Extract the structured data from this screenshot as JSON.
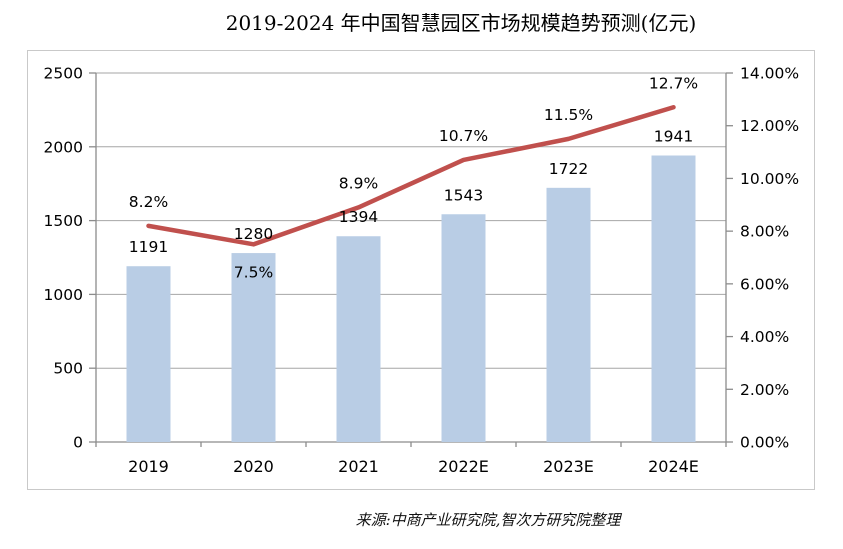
{
  "chart_data": {
    "type": "bar+line",
    "title": "2019-2024 年中国智慧园区市场规模趋势预测(亿元)",
    "source_note": "来源:中商产业研究院,智次方研究院整理",
    "categories": [
      "2019",
      "2020",
      "2021",
      "2022E",
      "2023E",
      "2024E"
    ],
    "series": [
      {
        "id": "bar",
        "type": "bar",
        "axis": "left",
        "color": "#B9CDE5",
        "values": [
          1191,
          1280,
          1394,
          1543,
          1722,
          1941
        ],
        "labels": [
          "1191",
          "1280",
          "1394",
          "1543",
          "1722",
          "1941"
        ]
      },
      {
        "id": "line",
        "type": "line",
        "axis": "right",
        "color": "#C0504D",
        "values": [
          8.2,
          7.5,
          8.9,
          10.7,
          11.5,
          12.7
        ],
        "labels": [
          "8.2%",
          "7.5%",
          "8.9%",
          "10.7%",
          "11.5%",
          "12.7%"
        ],
        "label_positions": [
          "above",
          "below",
          "above",
          "above",
          "above",
          "above"
        ]
      }
    ],
    "left_axis": {
      "min": 0,
      "max": 2500,
      "step": 500,
      "tick_labels": [
        "0",
        "500",
        "1000",
        "1500",
        "2000",
        "2500"
      ]
    },
    "right_axis": {
      "min": 0,
      "max": 14,
      "step": 2,
      "tick_labels": [
        "0.00%",
        "2.00%",
        "4.00%",
        "6.00%",
        "8.00%",
        "10.00%",
        "12.00%",
        "14.00%"
      ]
    },
    "grid": true,
    "legend": "none",
    "colors": {
      "gridline": "#A6A6A6",
      "axis": "#8C8C8C",
      "frame": "#C9C9C9",
      "label_text": "#000000",
      "background": "#FFFFFF"
    }
  }
}
